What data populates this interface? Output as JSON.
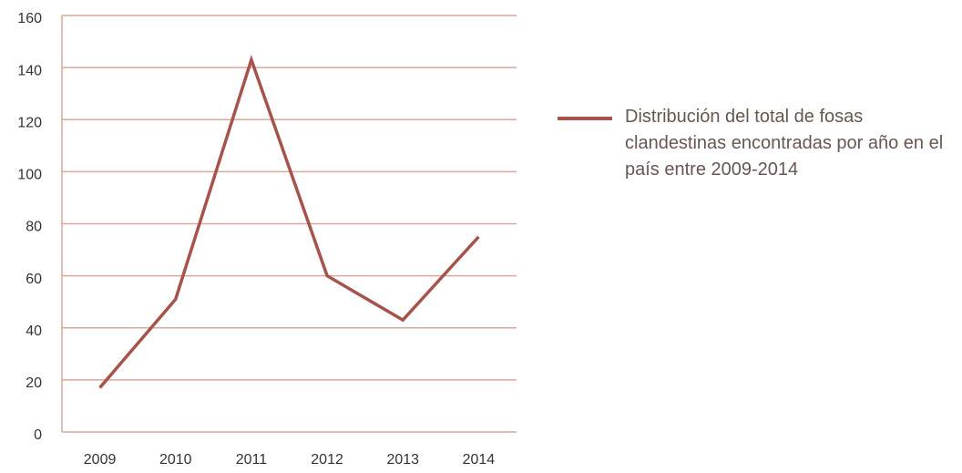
{
  "chart_data": {
    "type": "line",
    "categories": [
      "2009",
      "2010",
      "2011",
      "2012",
      "2013",
      "2014"
    ],
    "series": [
      {
        "name": "Distribución del total de fosas clandestinas encontradas por año en el país entre 2009-2014",
        "color": "#a5534b",
        "values": [
          17,
          51,
          143,
          60,
          43,
          75
        ]
      }
    ],
    "ylim": [
      0,
      160
    ],
    "yticks": [
      0,
      20,
      40,
      60,
      80,
      100,
      120,
      140,
      160
    ],
    "grid": true,
    "grid_color": "#d6a99c",
    "legend": "right"
  }
}
